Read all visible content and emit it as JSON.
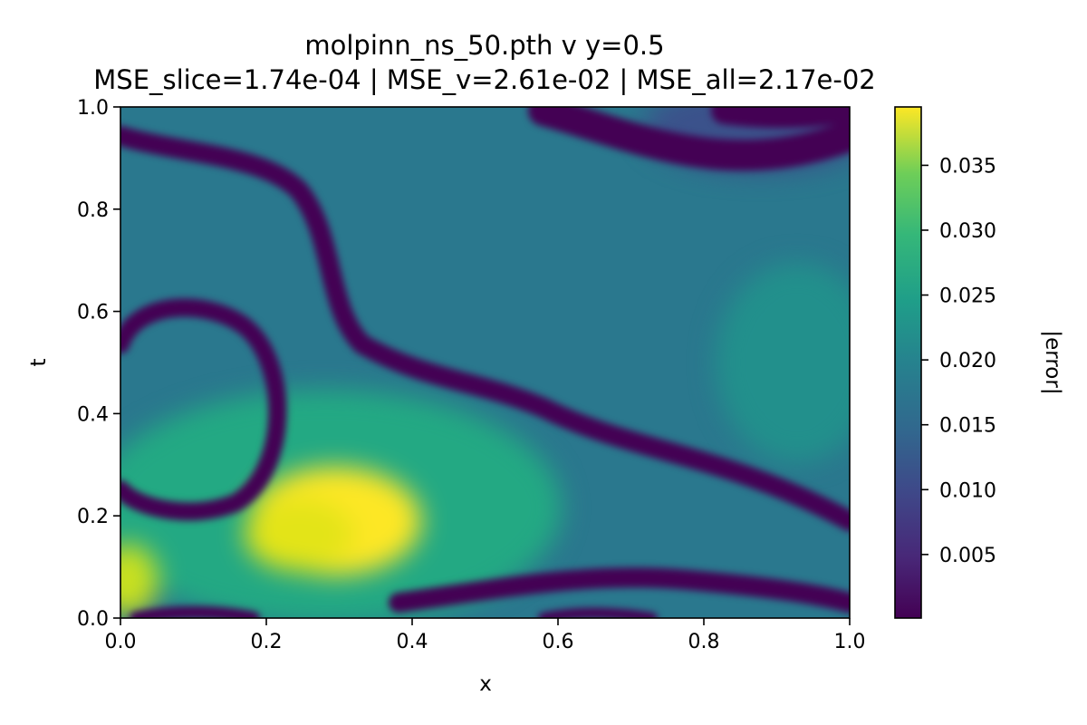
{
  "chart_data": {
    "type": "heatmap",
    "title_line1": "molpinn_ns_50.pth  v  y=0.5",
    "title_line2": "MSE_slice=1.74e-04  |  MSE_v=2.61e-02  |  MSE_all=2.17e-02",
    "xlabel": "x",
    "ylabel": "t",
    "xlim": [
      0.0,
      1.0
    ],
    "ylim": [
      0.0,
      1.0
    ],
    "xticks": [
      "0.0",
      "0.2",
      "0.4",
      "0.6",
      "0.8",
      "1.0"
    ],
    "yticks": [
      "0.0",
      "0.2",
      "0.4",
      "0.6",
      "0.8",
      "1.0"
    ],
    "colormap": "viridis",
    "colorbar": {
      "label": "|error|",
      "range": [
        0.0001,
        0.0395
      ],
      "ticks": [
        {
          "value": 0.005,
          "label": "0.005"
        },
        {
          "value": 0.01,
          "label": "0.010"
        },
        {
          "value": 0.015,
          "label": "0.015"
        },
        {
          "value": 0.02,
          "label": "0.020"
        },
        {
          "value": 0.025,
          "label": "0.025"
        },
        {
          "value": 0.03,
          "label": "0.030"
        },
        {
          "value": 0.035,
          "label": "0.035"
        }
      ]
    },
    "grid": false
  }
}
